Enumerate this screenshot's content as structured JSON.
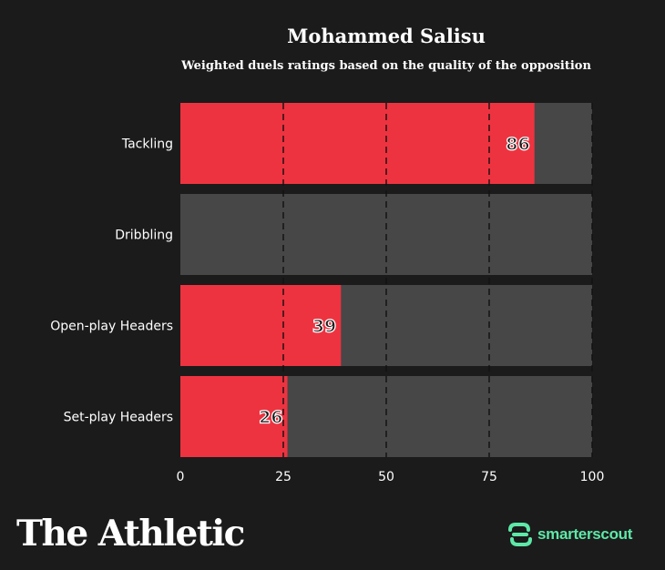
{
  "chart_data": {
    "type": "bar",
    "orientation": "horizontal",
    "title": "Mohammed Salisu",
    "subtitle": "Weighted duels ratings based on the quality of the opposition",
    "categories": [
      "Tackling",
      "Dribbling",
      "Open-play Headers",
      "Set-play Headers"
    ],
    "values": [
      86,
      0,
      39,
      26
    ],
    "value_labels": [
      "86",
      "",
      "39",
      "26"
    ],
    "xlim": [
      0,
      100
    ],
    "xticks": [
      "0",
      "25",
      "50",
      "75",
      "100"
    ],
    "xlabel": "",
    "ylabel": "",
    "grid": "dashed vertical at 25, 50, 75, 100",
    "colors": {
      "bar": "#ee3340",
      "track": "#474747",
      "background": "#1b1b1b"
    }
  },
  "footer": {
    "brand": "The Athletic",
    "partner": "smarterscout",
    "partner_icon": "smarterscout-logo-icon",
    "partner_color": "#5ee8a8"
  }
}
